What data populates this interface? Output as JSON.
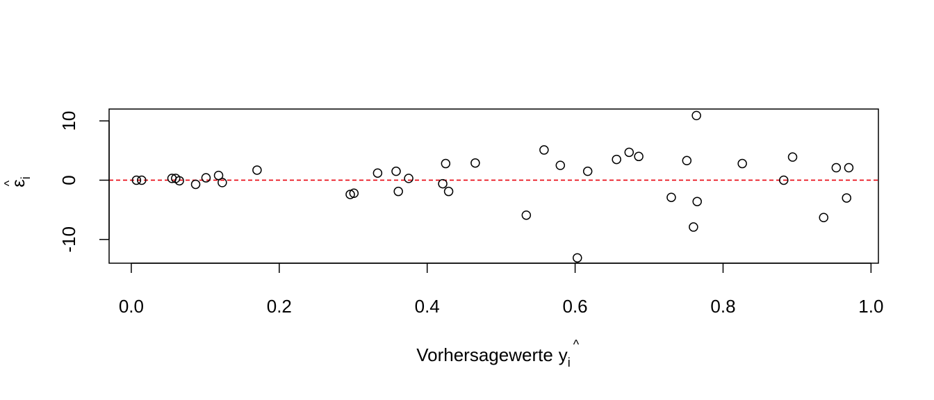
{
  "chart_data": {
    "type": "scatter",
    "title": "",
    "xlabel": "Vorhersagewerte",
    "xlabel_symbol": "y",
    "xlabel_symbol_hat": "^",
    "xlabel_subscript": "i",
    "ylabel_symbol": "ε",
    "ylabel_symbol_hat": "^",
    "ylabel_subscript": "i",
    "xlim": [
      -0.03,
      1.01
    ],
    "ylim": [
      -14,
      12
    ],
    "x_ticks": [
      0.0,
      0.2,
      0.4,
      0.6,
      0.8,
      1.0
    ],
    "x_tick_labels": [
      "0.0",
      "0.2",
      "0.4",
      "0.6",
      "0.8",
      "1.0"
    ],
    "y_ticks": [
      -10,
      0,
      10
    ],
    "y_tick_labels": [
      "-10",
      "0",
      "10"
    ],
    "grid": false,
    "reference_line": {
      "y": 0,
      "style": "dashed",
      "color": "#e8000b"
    },
    "points": [
      {
        "x": 0.007,
        "y": 0.0
      },
      {
        "x": 0.014,
        "y": 0.0
      },
      {
        "x": 0.055,
        "y": 0.3
      },
      {
        "x": 0.06,
        "y": 0.3
      },
      {
        "x": 0.065,
        "y": -0.1
      },
      {
        "x": 0.087,
        "y": -0.7
      },
      {
        "x": 0.101,
        "y": 0.4
      },
      {
        "x": 0.118,
        "y": 0.8
      },
      {
        "x": 0.123,
        "y": -0.4
      },
      {
        "x": 0.17,
        "y": 1.7
      },
      {
        "x": 0.296,
        "y": -2.4
      },
      {
        "x": 0.301,
        "y": -2.2
      },
      {
        "x": 0.333,
        "y": 1.2
      },
      {
        "x": 0.358,
        "y": 1.5
      },
      {
        "x": 0.361,
        "y": -1.9
      },
      {
        "x": 0.375,
        "y": 0.3
      },
      {
        "x": 0.421,
        "y": -0.6
      },
      {
        "x": 0.425,
        "y": 2.8
      },
      {
        "x": 0.429,
        "y": -1.9
      },
      {
        "x": 0.465,
        "y": 2.9
      },
      {
        "x": 0.534,
        "y": -5.9
      },
      {
        "x": 0.558,
        "y": 5.1
      },
      {
        "x": 0.58,
        "y": 2.5
      },
      {
        "x": 0.603,
        "y": -13.1
      },
      {
        "x": 0.617,
        "y": 1.5
      },
      {
        "x": 0.656,
        "y": 3.5
      },
      {
        "x": 0.673,
        "y": 4.7
      },
      {
        "x": 0.686,
        "y": 4.0
      },
      {
        "x": 0.73,
        "y": -2.9
      },
      {
        "x": 0.751,
        "y": 3.3
      },
      {
        "x": 0.76,
        "y": -7.9
      },
      {
        "x": 0.764,
        "y": 10.9
      },
      {
        "x": 0.765,
        "y": -3.6
      },
      {
        "x": 0.826,
        "y": 2.8
      },
      {
        "x": 0.882,
        "y": 0.0
      },
      {
        "x": 0.894,
        "y": 3.9
      },
      {
        "x": 0.936,
        "y": -6.3
      },
      {
        "x": 0.953,
        "y": 2.1
      },
      {
        "x": 0.967,
        "y": -3.0
      },
      {
        "x": 0.97,
        "y": 2.1
      }
    ]
  }
}
